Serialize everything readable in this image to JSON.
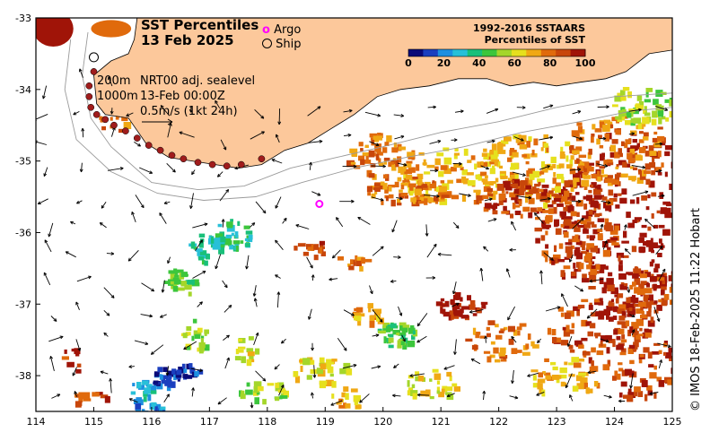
{
  "map": {
    "title": "SST Percentiles",
    "date": "13 Feb 2025",
    "lon_range": [
      114,
      125
    ],
    "lat_range": [
      -38.5,
      -33
    ],
    "x_ticks": [
      "114",
      "115",
      "116",
      "117",
      "118",
      "119",
      "120",
      "121",
      "122",
      "123",
      "124",
      "125"
    ],
    "y_ticks": [
      "-33",
      "-34",
      "-35",
      "-36",
      "-37",
      "-38"
    ]
  },
  "legend": {
    "argo_label": "Argo",
    "argo_marker": "o",
    "ship_label": "Ship",
    "isobath_200": "200m",
    "isobath_1000": "1000m",
    "sealevel_label": "NRT00 adj. sealevel",
    "time_label": "13-Feb 00:00Z",
    "scale_label": "0.5m/s (1kt 24h)"
  },
  "colorbar": {
    "title_line1": "1992-2016 SSTAARS",
    "title_line2": "Percentiles of SST",
    "ticks": [
      "0",
      "20",
      "40",
      "60",
      "80",
      "100"
    ],
    "colors": [
      "#0a0a78",
      "#1b3fbf",
      "#1d8fe0",
      "#28c0d8",
      "#19c07a",
      "#3cc63c",
      "#a4d62a",
      "#e6e01e",
      "#f0a814",
      "#e06a0c",
      "#c8460a",
      "#a01408"
    ]
  },
  "colors": {
    "land": "#fcc89b",
    "high": "#b01c0c",
    "orange": "#d8660a",
    "argo": "#ff00ff",
    "ship_track": "#a01c1c"
  },
  "argo_float": {
    "lon": 118.9,
    "lat": -35.6
  },
  "credit": "© IMOS 18-Feb-2025 11:22 Hobart"
}
